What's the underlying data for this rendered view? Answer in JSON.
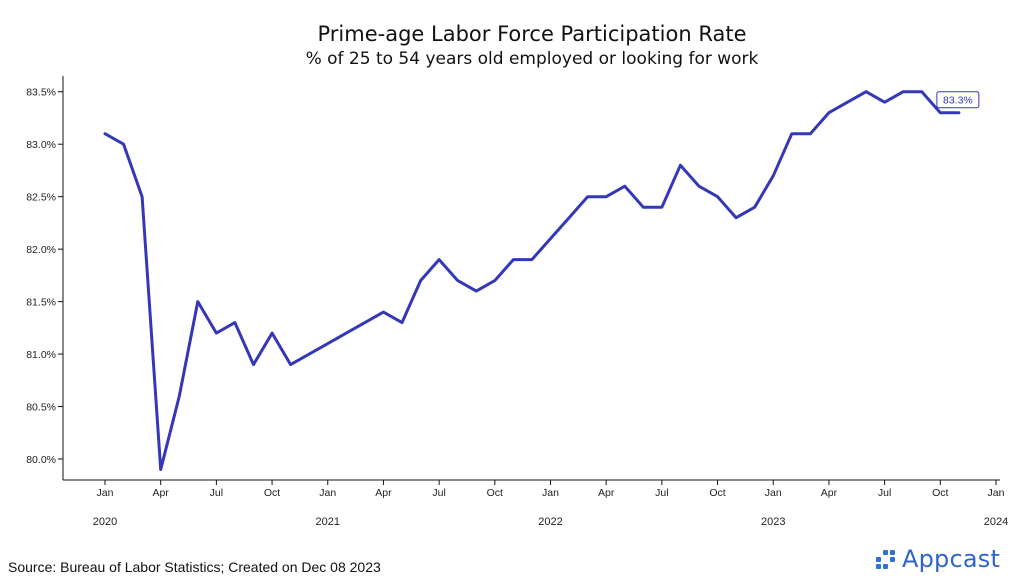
{
  "chart_data": {
    "type": "line",
    "title": "Prime-age Labor Force Participation Rate",
    "subtitle": "% of 25 to 54 years old employed or looking for work",
    "xlabel": "",
    "ylabel": "",
    "ylim": [
      79.8,
      83.65
    ],
    "y_ticks": [
      80.0,
      80.5,
      81.0,
      81.5,
      82.0,
      82.5,
      83.0,
      83.5
    ],
    "y_tick_labels": [
      "80.0%",
      "80.5%",
      "81.0%",
      "81.5%",
      "82.0%",
      "82.5%",
      "83.0%",
      "83.5%"
    ],
    "x_ticks": [
      "2020-01",
      "2020-04",
      "2020-07",
      "2020-10",
      "2021-01",
      "2021-04",
      "2021-07",
      "2021-10",
      "2022-01",
      "2022-04",
      "2022-07",
      "2022-10",
      "2023-01",
      "2023-04",
      "2023-07",
      "2023-10",
      "2024-01"
    ],
    "x_tick_labels": [
      "Jan",
      "Apr",
      "Jul",
      "Oct",
      "Jan",
      "Apr",
      "Jul",
      "Oct",
      "Jan",
      "Apr",
      "Jul",
      "Oct",
      "Jan",
      "Apr",
      "Jul",
      "Oct",
      "Jan"
    ],
    "year_labels": [
      {
        "at": "2020-01",
        "label": "2020"
      },
      {
        "at": "2021-01",
        "label": "2021"
      },
      {
        "at": "2022-01",
        "label": "2022"
      },
      {
        "at": "2023-01",
        "label": "2023"
      },
      {
        "at": "2024-01",
        "label": "2024"
      }
    ],
    "grid": false,
    "line_color": "#3438b8",
    "series": [
      {
        "x": [
          "2020-01",
          "2020-02",
          "2020-03",
          "2020-04",
          "2020-05",
          "2020-06",
          "2020-07",
          "2020-08",
          "2020-09",
          "2020-10",
          "2020-11",
          "2020-12",
          "2021-01",
          "2021-02",
          "2021-03",
          "2021-04",
          "2021-05",
          "2021-06",
          "2021-07",
          "2021-08",
          "2021-09",
          "2021-10",
          "2021-11",
          "2021-12",
          "2022-01",
          "2022-02",
          "2022-03",
          "2022-04",
          "2022-05",
          "2022-06",
          "2022-07",
          "2022-08",
          "2022-09",
          "2022-10",
          "2022-11",
          "2022-12",
          "2023-01",
          "2023-02",
          "2023-03",
          "2023-04",
          "2023-05",
          "2023-06",
          "2023-07",
          "2023-08",
          "2023-09",
          "2023-10",
          "2023-11"
        ],
        "values": [
          83.1,
          83.0,
          82.5,
          79.9,
          80.6,
          81.5,
          81.2,
          81.3,
          80.9,
          81.2,
          80.9,
          81.0,
          81.1,
          81.2,
          81.3,
          81.4,
          81.3,
          81.7,
          81.9,
          81.7,
          81.6,
          81.7,
          81.9,
          81.9,
          82.1,
          82.3,
          82.5,
          82.5,
          82.6,
          82.4,
          82.4,
          82.8,
          82.6,
          82.5,
          82.3,
          82.4,
          82.7,
          83.1,
          83.1,
          83.3,
          83.4,
          83.5,
          83.4,
          83.5,
          83.5,
          83.3,
          83.3
        ]
      }
    ],
    "end_label": "83.3%"
  },
  "footer": {
    "source": "Source: Bureau of Labor Statistics; Created on Dec 08 2023",
    "logo_text": "Appcast"
  }
}
